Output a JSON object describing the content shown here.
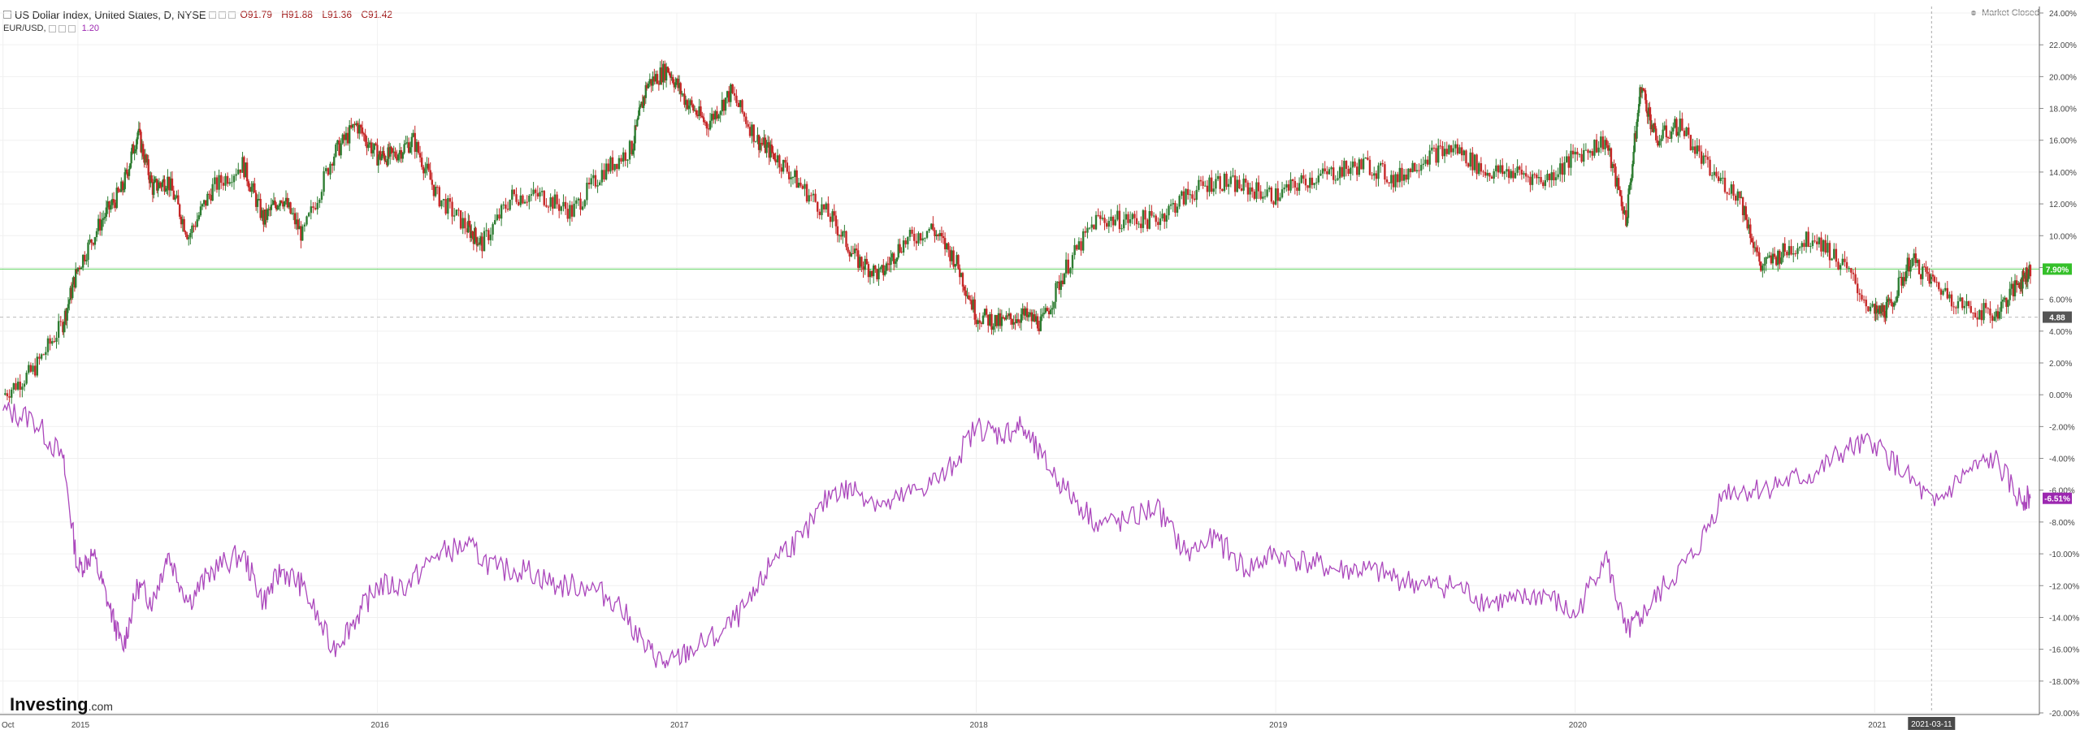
{
  "header": {
    "title": "US Dollar Index, United States, D, NYSE",
    "open": "O91.79",
    "high": "H91.88",
    "low": "L91.36",
    "close": "C91.42"
  },
  "compare": {
    "symbol": "EUR/USD,",
    "value": "1.20"
  },
  "status": {
    "label": "Market Closed"
  },
  "logo": {
    "brand": "Investing",
    "suffix": ".com"
  },
  "colors": {
    "candle_up": "#2e7d32",
    "candle_down": "#c62828",
    "compare_line": "#ab47bc",
    "current_line": "#5fd35f",
    "current_badge": "#35c02a",
    "compare_badge": "#9c27b0",
    "ref_badge": "#555555"
  },
  "chart_data": {
    "type": "line",
    "title": "US Dollar Index, United States, D, NYSE",
    "y_axis_ticks": [
      "24.00%",
      "22.00%",
      "20.00%",
      "18.00%",
      "16.00%",
      "14.00%",
      "12.00%",
      "10.00%",
      "8.00%",
      "6.00%",
      "4.00%",
      "2.00%",
      "0.00%",
      "-2.00%",
      "-4.00%",
      "-6.00%",
      "-8.00%",
      "-10.00%",
      "-12.00%",
      "-14.00%",
      "-16.00%",
      "-18.00%",
      "-20.00%"
    ],
    "ylim": [
      -20,
      24
    ],
    "x_axis_ticks": [
      "Oct",
      "2015",
      "2016",
      "2017",
      "2018",
      "2019",
      "2020",
      "2021"
    ],
    "x_tick_values": [
      2014.75,
      2015.0,
      2016.0,
      2017.0,
      2018.0,
      2019.0,
      2020.0,
      2021.0
    ],
    "xlim": [
      2014.74,
      2021.55
    ],
    "grid": true,
    "series": [
      {
        "name": "US Dollar Index, United States, D, NYSE",
        "style": "candlestick",
        "x": [
          2014.75,
          2014.85,
          2014.95,
          2015.0,
          2015.08,
          2015.15,
          2015.2,
          2015.25,
          2015.3,
          2015.37,
          2015.45,
          2015.55,
          2015.62,
          2015.68,
          2015.75,
          2015.85,
          2015.93,
          2016.0,
          2016.05,
          2016.12,
          2016.2,
          2016.3,
          2016.35,
          2016.45,
          2016.55,
          2016.65,
          2016.75,
          2016.85,
          2016.9,
          2016.97,
          2017.03,
          2017.1,
          2017.18,
          2017.27,
          2017.33,
          2017.42,
          2017.52,
          2017.6,
          2017.68,
          2017.75,
          2017.85,
          2017.93,
          2018.0,
          2018.08,
          2018.15,
          2018.22,
          2018.3,
          2018.4,
          2018.5,
          2018.6,
          2018.7,
          2018.8,
          2018.9,
          2019.0,
          2019.1,
          2019.2,
          2019.3,
          2019.4,
          2019.5,
          2019.6,
          2019.7,
          2019.8,
          2019.9,
          2020.0,
          2020.1,
          2020.17,
          2020.22,
          2020.27,
          2020.35,
          2020.45,
          2020.55,
          2020.62,
          2020.7,
          2020.8,
          2020.9,
          2021.0,
          2021.05,
          2021.12,
          2021.2,
          2021.3,
          2021.4,
          2021.48,
          2021.52
        ],
        "y": [
          0,
          1.5,
          4.5,
          8,
          11,
          13,
          16.5,
          13,
          13.5,
          10,
          13,
          14.5,
          11,
          12.5,
          10,
          15,
          17,
          15,
          15,
          16,
          12.5,
          10.5,
          9.5,
          12.5,
          12.5,
          11.5,
          14,
          15.5,
          19.5,
          20.5,
          18.5,
          17,
          19,
          16,
          15,
          13,
          11,
          8.5,
          7.5,
          9.5,
          10.5,
          8.5,
          5,
          4.5,
          5,
          4.5,
          8,
          11,
          11,
          11,
          12.5,
          13.5,
          13,
          12.5,
          13.5,
          14,
          14.5,
          13.5,
          15,
          15.5,
          14,
          14,
          13.5,
          15,
          16,
          11,
          19.5,
          16,
          17,
          14,
          12.5,
          8,
          9,
          10,
          8,
          5,
          5.5,
          8.5,
          7,
          5.5,
          5,
          7,
          7.9
        ],
        "current_value": "7.90%",
        "reference_value": "4.88"
      },
      {
        "name": "EUR/USD",
        "style": "line",
        "x": [
          2014.75,
          2014.85,
          2014.95,
          2015.0,
          2015.05,
          2015.1,
          2015.15,
          2015.2,
          2015.25,
          2015.3,
          2015.37,
          2015.45,
          2015.55,
          2015.62,
          2015.68,
          2015.75,
          2015.85,
          2015.93,
          2016.0,
          2016.1,
          2016.2,
          2016.3,
          2016.4,
          2016.5,
          2016.6,
          2016.7,
          2016.8,
          2016.9,
          2016.97,
          2017.05,
          2017.15,
          2017.25,
          2017.33,
          2017.42,
          2017.52,
          2017.6,
          2017.7,
          2017.8,
          2017.9,
          2018.0,
          2018.08,
          2018.15,
          2018.22,
          2018.3,
          2018.4,
          2018.5,
          2018.6,
          2018.7,
          2018.8,
          2018.9,
          2019.0,
          2019.1,
          2019.2,
          2019.3,
          2019.4,
          2019.5,
          2019.6,
          2019.7,
          2019.8,
          2019.9,
          2020.0,
          2020.1,
          2020.17,
          2020.22,
          2020.3,
          2020.4,
          2020.5,
          2020.6,
          2020.7,
          2020.8,
          2020.9,
          2021.0,
          2021.1,
          2021.2,
          2021.3,
          2021.4,
          2021.48,
          2021.52
        ],
        "y": [
          -1,
          -1.5,
          -4,
          -11,
          -10,
          -13,
          -16,
          -12,
          -13,
          -10,
          -13,
          -11,
          -10,
          -13,
          -11,
          -12,
          -16,
          -14,
          -12,
          -12,
          -10,
          -9.5,
          -11,
          -11,
          -12,
          -12,
          -13,
          -16,
          -17,
          -16,
          -15,
          -13,
          -10,
          -9,
          -6,
          -6,
          -7,
          -6,
          -5,
          -2,
          -2.5,
          -2,
          -4,
          -6,
          -8,
          -8,
          -7,
          -10,
          -9,
          -11,
          -10,
          -10.5,
          -11,
          -11,
          -11.5,
          -12,
          -12,
          -13,
          -13,
          -12.5,
          -14,
          -10,
          -15,
          -14,
          -12,
          -10,
          -6,
          -6,
          -5.5,
          -5,
          -3.5,
          -3,
          -5,
          -7,
          -5,
          -4,
          -6.5,
          -6.5
        ],
        "current_value": "-6.51%"
      }
    ],
    "crosshair_label": "2021-03-11"
  }
}
